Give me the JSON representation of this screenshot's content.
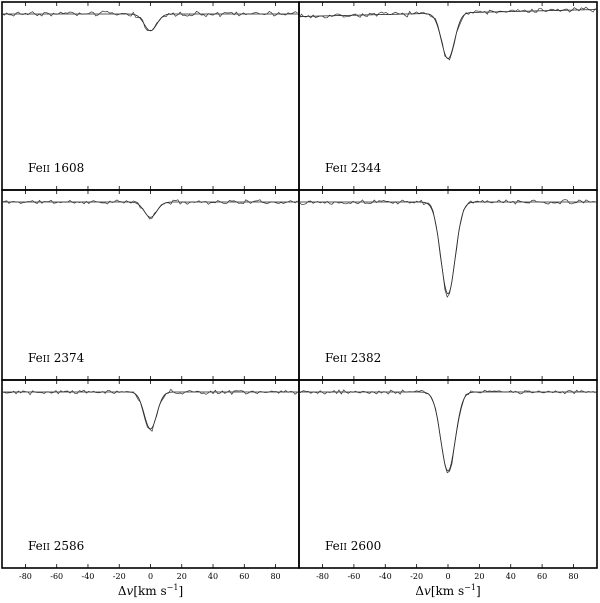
{
  "chart_data": {
    "type": "line",
    "layout": "3x2 grid of panels sharing a velocity axis",
    "xlim": [
      -95,
      95
    ],
    "x_ticks": [
      -80,
      -60,
      -40,
      -20,
      0,
      20,
      40,
      60,
      80
    ],
    "x_tick_labels": [
      "-80",
      "-60",
      "-40",
      "-20",
      "0",
      "20",
      "40",
      "60",
      "80"
    ],
    "xlabel": "Δv [km s⁻¹]",
    "xlabel_parts": {
      "delta": "Δ",
      "v": "v",
      "unit": "[km s",
      "exp": "−1",
      "close": "]"
    },
    "y_meaning": "normalized flux",
    "ylim": [
      0,
      1.05
    ],
    "grid": false,
    "series_styles": [
      "observed spectrum (thin jagged line)",
      "fitted Voigt profile (smooth line)"
    ],
    "panels": [
      {
        "label": "Fe II 1608",
        "ion": "Fe",
        "ion_stage": "II",
        "wavelength": "1608",
        "row": 0,
        "col": 0,
        "continuum": 1.0,
        "slope": 0.0,
        "center": 0,
        "depth": 0.1,
        "width": 4.0,
        "noise": 0.012,
        "seed": 3
      },
      {
        "label": "Fe II 2344",
        "ion": "Fe",
        "ion_stage": "II",
        "wavelength": "2344",
        "row": 0,
        "col": 1,
        "continuum": 0.985,
        "slope": 0.00022,
        "center": 0,
        "depth": 0.27,
        "width": 4.2,
        "noise": 0.012,
        "seed": 7
      },
      {
        "label": "Fe II 2374",
        "ion": "Fe",
        "ion_stage": "II",
        "wavelength": "2374",
        "row": 1,
        "col": 0,
        "continuum": 1.0,
        "slope": 0.0,
        "center": 0,
        "depth": 0.09,
        "width": 4.0,
        "noise": 0.01,
        "seed": 11
      },
      {
        "label": "Fe II 2382",
        "ion": "Fe",
        "ion_stage": "II",
        "wavelength": "2382",
        "row": 1,
        "col": 1,
        "continuum": 1.0,
        "slope": 0.0,
        "center": 0,
        "depth": 0.54,
        "width": 4.6,
        "noise": 0.01,
        "seed": 13
      },
      {
        "label": "Fe II 2586",
        "ion": "Fe",
        "ion_stage": "II",
        "wavelength": "2586",
        "row": 2,
        "col": 0,
        "continuum": 1.0,
        "slope": 0.0,
        "center": 0,
        "depth": 0.22,
        "width": 4.0,
        "noise": 0.012,
        "seed": 17
      },
      {
        "label": "Fe II 2600",
        "ion": "Fe",
        "ion_stage": "II",
        "wavelength": "2600",
        "row": 2,
        "col": 1,
        "continuum": 1.0,
        "slope": 0.0,
        "center": 0,
        "depth": 0.47,
        "width": 4.6,
        "noise": 0.01,
        "seed": 19
      }
    ]
  }
}
